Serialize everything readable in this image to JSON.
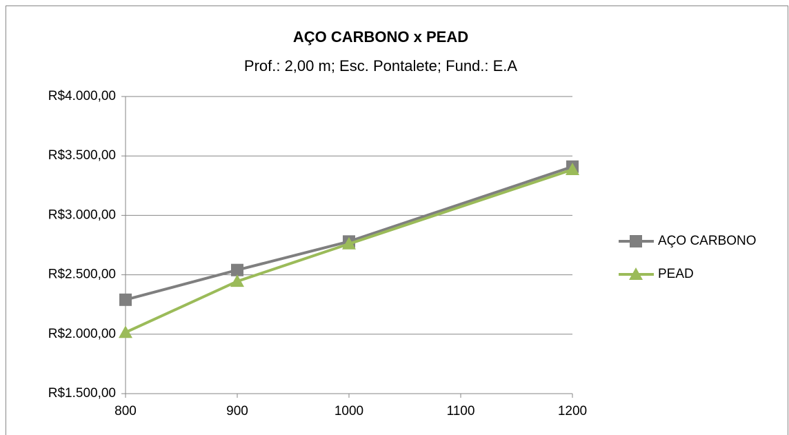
{
  "chart_data": {
    "type": "line",
    "title": "AÇO CARBONO x PEAD",
    "subtitle": "Prof.: 2,00 m; Esc. Pontalete; Fund.: E.A",
    "x": [
      800,
      900,
      1000,
      1200
    ],
    "series": [
      {
        "name": "AÇO CARBONO",
        "color": "#7f7f7f",
        "marker": "square",
        "values": [
          2290,
          2540,
          2780,
          3410
        ]
      },
      {
        "name": "PEAD",
        "color": "#9bbb59",
        "marker": "triangle",
        "values": [
          2015,
          2445,
          2760,
          3385
        ]
      }
    ],
    "xlim": [
      800,
      1200
    ],
    "xticks": [
      800,
      900,
      1000,
      1100,
      1200
    ],
    "ylim": [
      1500,
      4000
    ],
    "yticks": [
      {
        "value": 1500,
        "label": "R$1.500,00"
      },
      {
        "value": 2000,
        "label": "R$2.000,00"
      },
      {
        "value": 2500,
        "label": "R$2.500,00"
      },
      {
        "value": 3000,
        "label": "R$3.000,00"
      },
      {
        "value": 3500,
        "label": "R$3.500,00"
      },
      {
        "value": 4000,
        "label": "R$4.000,00"
      }
    ],
    "grid": true,
    "legend": "right"
  }
}
